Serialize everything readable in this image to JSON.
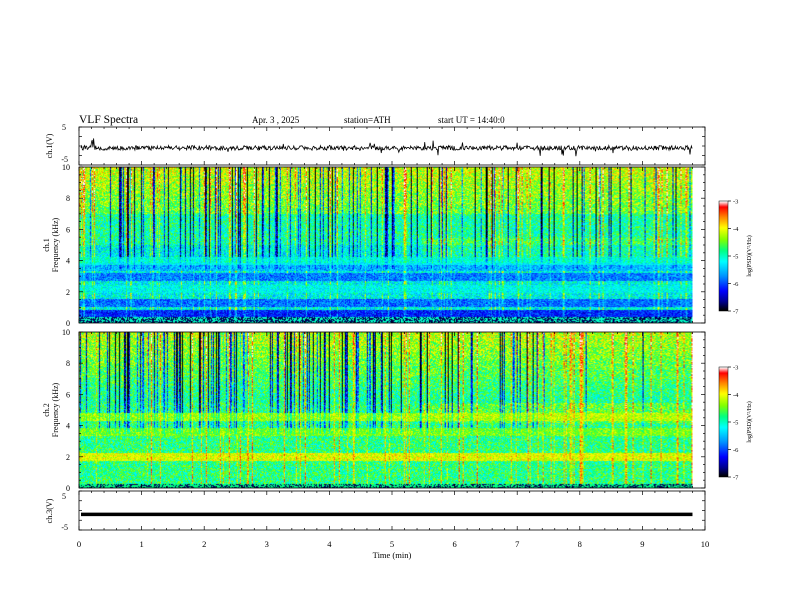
{
  "header": {
    "title": "VLF Spectra",
    "date": "Apr. 3 , 2025",
    "station": "station=ATH",
    "start": "start UT = 14:40:0"
  },
  "chart_data": [
    {
      "id": "ch1-waveform",
      "type": "line",
      "ylabel": "ch.1(V)",
      "xlim": [
        0,
        10
      ],
      "ylim": [
        -5,
        5
      ],
      "yticks": [
        "5",
        "-5"
      ],
      "baseline_v": -0.5,
      "signal_end_min": 9.8,
      "description_values": "noisy waveform around -0.5 V with spikes to about +/-1.5 V"
    },
    {
      "id": "ch1-spectrogram",
      "type": "heatmap",
      "ylabel": "ch.1\nFrequency (kHz)",
      "ylabel_lines": [
        "ch.1",
        "Frequency (kHz)"
      ],
      "xlim": [
        0,
        10
      ],
      "ylim": [
        0,
        10
      ],
      "yticks": [
        "0",
        "2",
        "4",
        "6",
        "8",
        "10"
      ],
      "signal_end_min": 9.8,
      "colorbar": {
        "label": "log(PSD)(V²/Hz)",
        "ticks": [
          "-3",
          "-4",
          "-5",
          "-6",
          "-7"
        ],
        "range": [
          -7,
          -3
        ]
      },
      "bands_khz": [
        {
          "f": 0.6,
          "level": -6.8
        },
        {
          "f": 1.3,
          "level": -6.3
        },
        {
          "f": 2.2,
          "level": -5.2
        },
        {
          "f": 3.0,
          "level": -6.2
        },
        {
          "f": 3.6,
          "level": -5.8
        },
        {
          "f": 4.0,
          "level": -5.0
        }
      ]
    },
    {
      "id": "ch2-spectrogram",
      "type": "heatmap",
      "ylabel": "ch.2\nFrequency (kHz)",
      "ylabel_lines": [
        "ch.2",
        "Frequency (kHz)"
      ],
      "xlim": [
        0,
        10
      ],
      "ylim": [
        0,
        10
      ],
      "yticks": [
        "0",
        "2",
        "4",
        "6",
        "8",
        "10"
      ],
      "signal_end_min": 9.8,
      "colorbar": {
        "label": "log(PSD)(V²/Hz)",
        "ticks": [
          "-3",
          "-4",
          "-5",
          "-6",
          "-7"
        ],
        "range": [
          -7,
          -3
        ]
      },
      "bands_khz": [
        {
          "f": 2.0,
          "level": -3.6
        },
        {
          "f": 3.6,
          "level": -4.2
        },
        {
          "f": 4.6,
          "level": -4.0
        }
      ]
    },
    {
      "id": "ch3-waveform",
      "type": "line",
      "ylabel": "ch.3(V)",
      "xlim": [
        0,
        10
      ],
      "ylim": [
        -5,
        5
      ],
      "yticks": [
        "5",
        "-5"
      ],
      "baseline_v": -1.0,
      "signal_end_min": 9.8
    }
  ],
  "x_axis": {
    "label": "Time (min)",
    "ticks": [
      "0",
      "1",
      "2",
      "3",
      "4",
      "5",
      "6",
      "7",
      "8",
      "9",
      "10"
    ]
  },
  "colormap": [
    "#000000",
    "#00008b",
    "#0000ff",
    "#0096ff",
    "#00ffff",
    "#00ff80",
    "#80ff00",
    "#ffff00",
    "#ff8000",
    "#ff0000",
    "#ffffff"
  ]
}
